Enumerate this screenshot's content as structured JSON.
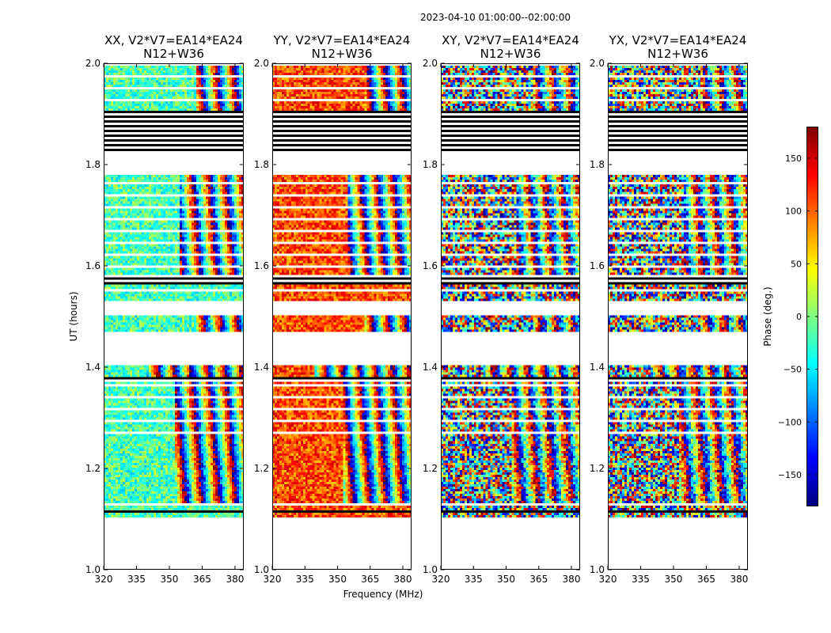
{
  "chart_data": {
    "type": "heatmap",
    "suptitle": "2023-04-10  01:00:00--02:00:00",
    "xlabel": "Frequency (MHz)",
    "ylabel": "UT (hours)",
    "xlim": [
      320,
      384
    ],
    "ylim": [
      1.0,
      2.0
    ],
    "xticks": [
      320,
      335,
      350,
      365,
      380
    ],
    "yticks": [
      1.0,
      1.2,
      1.4,
      1.6,
      1.8,
      2.0
    ],
    "colorbar": {
      "label": "Phase (deg.)",
      "range": [
        -180,
        180
      ],
      "ticks": [
        -150,
        -100,
        -50,
        0,
        50,
        100,
        150
      ],
      "colormap": "jet"
    },
    "time_segments": [
      {
        "start": 1.097,
        "end": 1.103,
        "state": "flagged"
      },
      {
        "start": 1.103,
        "end": 1.112,
        "state": "data"
      },
      {
        "start": 1.112,
        "end": 1.116,
        "state": "flagged"
      },
      {
        "start": 1.116,
        "end": 1.127,
        "state": "data"
      },
      {
        "start": 1.127,
        "end": 1.133,
        "state": "flagged"
      },
      {
        "start": 1.133,
        "end": 1.255,
        "state": "data",
        "fringes_from": 352
      },
      {
        "start": 1.255,
        "end": 1.372,
        "state": "data_gapped",
        "fringes_from": 352
      },
      {
        "start": 1.372,
        "end": 1.381,
        "state": "flagged"
      },
      {
        "start": 1.381,
        "end": 1.402,
        "state": "data",
        "fringes_from": 340
      },
      {
        "start": 1.469,
        "end": 1.503,
        "state": "data",
        "fringes_from": 362
      },
      {
        "start": 1.53,
        "end": 1.565,
        "state": "data_gapped"
      },
      {
        "start": 1.565,
        "end": 1.583,
        "state": "flagged"
      },
      {
        "start": 1.583,
        "end": 1.78,
        "state": "data_gapped",
        "fringes_from": 355
      },
      {
        "start": 1.823,
        "end": 1.906,
        "state": "flagged"
      },
      {
        "start": 1.906,
        "end": 2.0,
        "state": "data_gapped",
        "fringes_from": 362
      }
    ],
    "panels": [
      {
        "title": "XX, V2*V7=EA14*EA24",
        "baseline": "N12+W36",
        "mean_phase": -20,
        "coherent": true
      },
      {
        "title": "YY, V2*V7=EA14*EA24",
        "baseline": "N12+W36",
        "mean_phase": 110,
        "coherent": true
      },
      {
        "title": "XY, V2*V7=EA14*EA24",
        "baseline": "N12+W36",
        "mean_phase": 0,
        "coherent": false
      },
      {
        "title": "YX, V2*V7=EA14*EA24",
        "baseline": "N12+W36",
        "mean_phase": 0,
        "coherent": false
      }
    ]
  }
}
